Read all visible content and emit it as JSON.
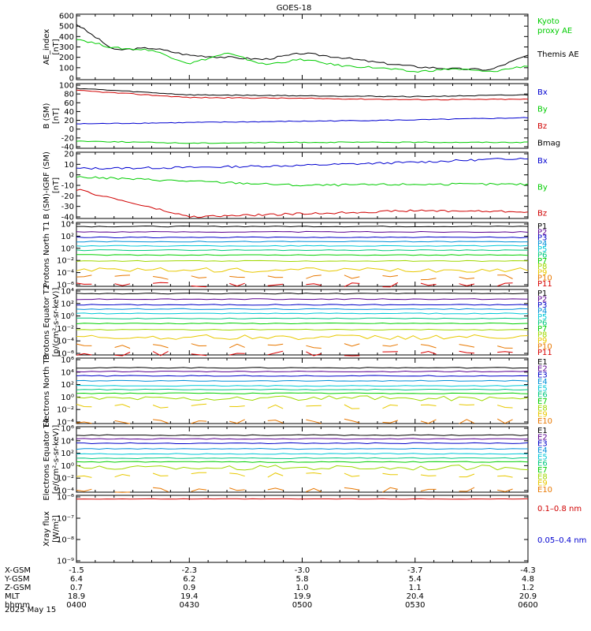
{
  "title": "GOES-18",
  "date_label": "2025 May 15",
  "colors": {
    "black": "#000000",
    "blue": "#0000d0",
    "green": "#00cc00",
    "red": "#d00000",
    "ch": [
      "#000000",
      "#5a0090",
      "#0000c8",
      "#0090d8",
      "#00c8d8",
      "#00c880",
      "#00d000",
      "#a0d800",
      "#e8c800",
      "#e87800",
      "#d80000",
      "#c00000"
    ]
  },
  "panels": [
    {
      "id": "ae",
      "ylabel": "AE_index [nT]",
      "ticks": [
        "600",
        "500",
        "400",
        "300",
        "200",
        "100",
        "0"
      ],
      "legend": [
        {
          "text": "Kyoto",
          "color": "#00cc00"
        },
        {
          "text": "proxy AE",
          "color": "#00cc00"
        },
        {
          "text": "Themis AE",
          "color": "#000000"
        }
      ]
    },
    {
      "id": "b",
      "ylabel": "B (SM) [nT]",
      "ticks": [
        "100",
        "80",
        "60",
        "40",
        "20",
        "0",
        "-20",
        "-40"
      ],
      "legend": [
        {
          "text": "Bx",
          "color": "#0000d0"
        },
        {
          "text": "By",
          "color": "#00cc00"
        },
        {
          "text": "Bz",
          "color": "#d00000"
        },
        {
          "text": "Bmag",
          "color": "#000000"
        }
      ]
    },
    {
      "id": "bigrf",
      "ylabel": "B (SM)-IGRF (SM) [nT]",
      "ticks": [
        "20",
        "10",
        "0",
        "-10",
        "-20",
        "-30",
        "-40"
      ],
      "legend": [
        {
          "text": "Bx",
          "color": "#0000d0"
        },
        {
          "text": "By",
          "color": "#00cc00"
        },
        {
          "text": "Bz",
          "color": "#d00000"
        }
      ]
    },
    {
      "id": "pn",
      "ylabel": "Protons North T1",
      "ticks": [
        "10⁴",
        "10²",
        "10⁰",
        "10⁻²",
        "10⁻⁴",
        "10⁻⁶"
      ],
      "legend": [
        {
          "text": "P1"
        },
        {
          "text": "P2"
        },
        {
          "text": "P3"
        },
        {
          "text": "P4"
        },
        {
          "text": "P5"
        },
        {
          "text": "P6"
        },
        {
          "text": "P7"
        },
        {
          "text": "P8"
        },
        {
          "text": "P9"
        },
        {
          "text": "P10"
        },
        {
          "text": "P11"
        }
      ]
    },
    {
      "id": "pe",
      "ylabel": "Protons Equator T2 [p/(cm²-s-sr-keV)]",
      "ticks": [
        "10⁴",
        "10²",
        "10⁰",
        "10⁻²",
        "10⁻⁴",
        "10⁻⁶"
      ],
      "legend": [
        {
          "text": "P1"
        },
        {
          "text": "P2"
        },
        {
          "text": "P3"
        },
        {
          "text": "P4"
        },
        {
          "text": "P5"
        },
        {
          "text": "P6"
        },
        {
          "text": "P7"
        },
        {
          "text": "P8"
        },
        {
          "text": "P9"
        },
        {
          "text": "P10"
        },
        {
          "text": "P11"
        }
      ]
    },
    {
      "id": "en",
      "ylabel": "Electrons North T3",
      "ticks": [
        "10⁶",
        "10⁴",
        "10²",
        "10⁰",
        "10⁻²",
        "10⁻⁴"
      ],
      "legend": [
        {
          "text": "E1"
        },
        {
          "text": "E2"
        },
        {
          "text": "E3"
        },
        {
          "text": "E4"
        },
        {
          "text": "E5"
        },
        {
          "text": "E6"
        },
        {
          "text": "E7"
        },
        {
          "text": "E8"
        },
        {
          "text": "E9"
        },
        {
          "text": "E10"
        }
      ]
    },
    {
      "id": "ee",
      "ylabel": "Electrons Equator T4 [e/(cm²-s-sr-keV)]",
      "ticks": [
        "10⁶",
        "10⁴",
        "10²",
        "10⁰",
        "10⁻²",
        "10⁻⁴"
      ],
      "legend": [
        {
          "text": "E1"
        },
        {
          "text": "E2"
        },
        {
          "text": "E3"
        },
        {
          "text": "E4"
        },
        {
          "text": "E5"
        },
        {
          "text": "E6"
        },
        {
          "text": "E7"
        },
        {
          "text": "E8"
        },
        {
          "text": "E9"
        },
        {
          "text": "E10"
        }
      ]
    },
    {
      "id": "xray",
      "ylabel": "Xray flux [W/m²]",
      "ticks": [
        "10⁻⁶",
        "10⁻⁷",
        "10⁻⁸",
        "10⁻⁹"
      ],
      "legend": [
        {
          "text": "0.1–0.8 nm",
          "color": "#d00000"
        },
        {
          "text": "0.05–0.4 nm",
          "color": "#0000d0"
        }
      ]
    }
  ],
  "xaxis": {
    "row_labels": [
      "X-GSM",
      "Y-GSM",
      "Z-GSM",
      "MLT",
      "hhmm"
    ],
    "columns": [
      [
        "-1.5",
        "6.4",
        "0.7",
        "18.9",
        "0400"
      ],
      [
        "-2.3",
        "6.2",
        "0.9",
        "19.4",
        "0430"
      ],
      [
        "-3.0",
        "5.8",
        "1.0",
        "19.9",
        "0500"
      ],
      [
        "-3.7",
        "5.4",
        "1.1",
        "20.4",
        "0530"
      ],
      [
        "-4.3",
        "4.8",
        "1.2",
        "20.9",
        "0600"
      ]
    ]
  },
  "chart_data": [
    {
      "type": "line",
      "title": "GOES-18",
      "ylabel": "AE_index [nT]",
      "ylim": [
        0,
        600
      ],
      "x": [
        "0400",
        "0410",
        "0420",
        "0430",
        "0440",
        "0450",
        "0500",
        "0510",
        "0520",
        "0530",
        "0540",
        "0550",
        "0600"
      ],
      "series": [
        {
          "name": "Themis AE",
          "values": [
            520,
            270,
            290,
            220,
            200,
            180,
            240,
            200,
            150,
            110,
            90,
            80,
            220
          ]
        },
        {
          "name": "Kyoto proxy AE",
          "values": [
            380,
            290,
            270,
            140,
            240,
            130,
            180,
            120,
            100,
            60,
            90,
            60,
            120
          ]
        }
      ]
    },
    {
      "type": "line",
      "ylabel": "B (SM) [nT]",
      "ylim": [
        -40,
        100
      ],
      "x": [
        "0400",
        "0430",
        "0500",
        "0530",
        "0600"
      ],
      "series": [
        {
          "name": "Bx",
          "values": [
            12,
            15,
            18,
            21,
            26
          ]
        },
        {
          "name": "By",
          "values": [
            -27,
            -32,
            -30,
            -30,
            -30
          ]
        },
        {
          "name": "Bz",
          "values": [
            88,
            72,
            70,
            67,
            68
          ]
        },
        {
          "name": "Bmag",
          "values": [
            93,
            78,
            76,
            74,
            78
          ]
        }
      ]
    },
    {
      "type": "line",
      "ylabel": "B (SM)-IGRF (SM) [nT]",
      "ylim": [
        -40,
        20
      ],
      "x": [
        "0400",
        "0430",
        "0500",
        "0530",
        "0600"
      ],
      "series": [
        {
          "name": "Bx",
          "values": [
            6,
            7,
            9,
            12,
            16
          ]
        },
        {
          "name": "By",
          "values": [
            -2,
            -6,
            -10,
            -9,
            -9
          ]
        },
        {
          "name": "Bz",
          "values": [
            -14,
            -40,
            -37,
            -34,
            -35
          ]
        }
      ]
    },
    {
      "type": "line",
      "ylabel": "Protons North T1",
      "ylim": [
        "1e-6",
        "1e4"
      ],
      "series_log10": [
        3.6,
        2.7,
        1.8,
        1.1,
        0.4,
        -0.3,
        -1.1,
        -2.1,
        -3.6,
        -4.8,
        -6
      ]
    },
    {
      "type": "line",
      "ylabel": "Protons Equator T2 [p/(cm²-s-sr-keV)]",
      "ylim": [
        "1e-6",
        "1e4"
      ],
      "series_log10": [
        3.6,
        2.7,
        1.8,
        1.1,
        0.4,
        -0.4,
        -1.2,
        -2.2,
        -3.4,
        -4.8,
        -6
      ]
    },
    {
      "type": "line",
      "ylabel": "Electrons North T3",
      "ylim": [
        "1e-4",
        "1e6"
      ],
      "series_log10": [
        4.7,
        4.1,
        3.4,
        2.6,
        1.8,
        1.2,
        0.6,
        -0.2,
        -1.5,
        -3.9
      ]
    },
    {
      "type": "line",
      "ylabel": "Electrons Equator T4 [e/(cm²-s-sr-keV)]",
      "ylim": [
        "1e-4",
        "1e6"
      ],
      "series_log10": [
        4.9,
        4.3,
        3.6,
        2.7,
        1.9,
        1.2,
        0.6,
        -0.3,
        -1.5,
        -3.9
      ]
    },
    {
      "type": "line",
      "ylabel": "Xray flux [W/m²]",
      "ylim": [
        "1e-9",
        "1e-6"
      ],
      "series": [
        {
          "name": "0.1–0.8 nm",
          "values": [
            "8e-7",
            "8e-7",
            "8e-7",
            "8e-7",
            "8e-7"
          ]
        }
      ]
    }
  ]
}
